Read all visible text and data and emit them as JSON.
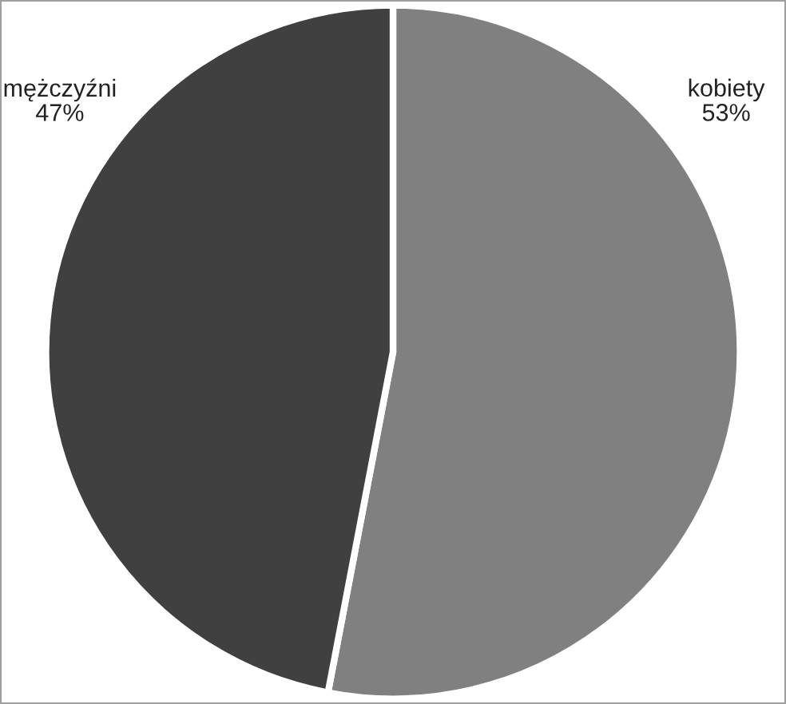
{
  "chart_data": {
    "type": "pie",
    "categories": [
      "kobiety",
      "mężczyźni"
    ],
    "values": [
      53,
      47
    ],
    "colors": [
      "#808080",
      "#404040"
    ],
    "value_labels": [
      "53%",
      "47%"
    ]
  }
}
